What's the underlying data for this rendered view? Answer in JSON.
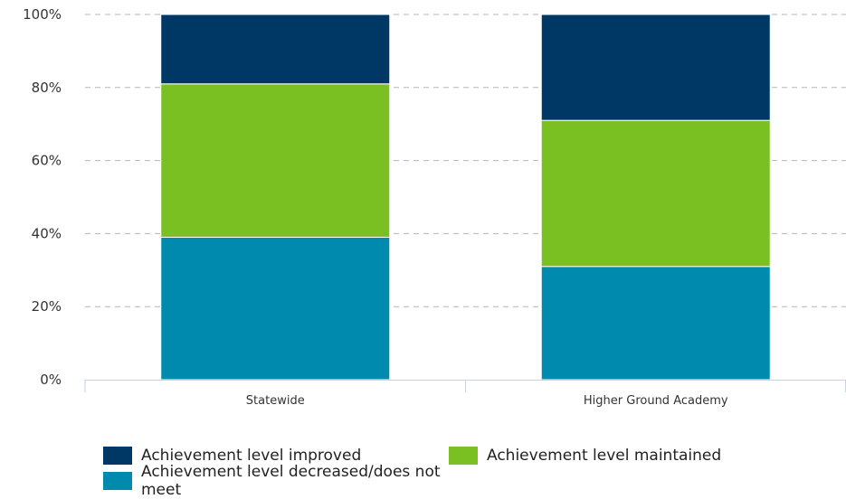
{
  "chart_data": {
    "type": "bar",
    "stacked": true,
    "categories": [
      "Statewide",
      "Higher Ground Academy"
    ],
    "series": [
      {
        "name": "Achievement level decreased/does not meet",
        "color": "#008aad",
        "values": [
          39,
          31
        ]
      },
      {
        "name": "Achievement level maintained",
        "color": "#7ac023",
        "values": [
          42,
          40
        ]
      },
      {
        "name": "Achievement level improved",
        "color": "#003865",
        "values": [
          19,
          29
        ]
      }
    ],
    "yticks": [
      "0%",
      "20%",
      "40%",
      "60%",
      "80%",
      "100%"
    ],
    "ylim": [
      0,
      100
    ],
    "grid": true,
    "legend_position": "bottom",
    "legend_order": [
      2,
      1,
      0
    ]
  }
}
